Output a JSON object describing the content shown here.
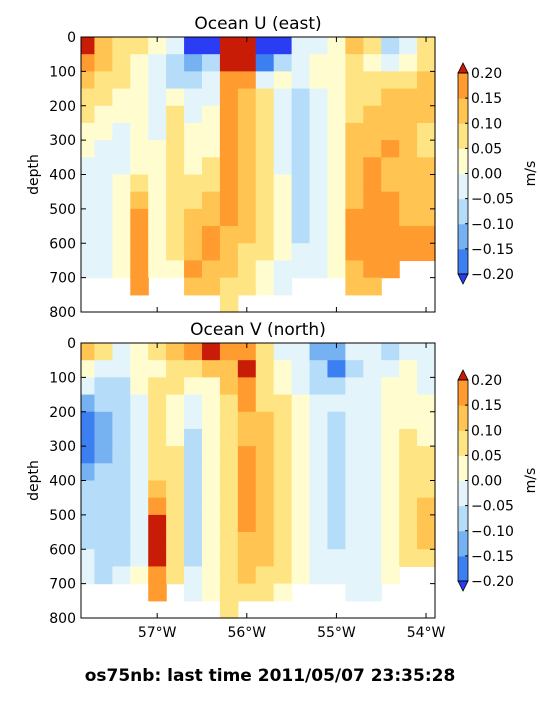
{
  "figure": {
    "suptitle": "os75nb: last time 2011/05/07 23:35:28"
  },
  "chart_data": [
    {
      "type": "heatmap",
      "title": "Ocean U (east)",
      "xlabel": "",
      "ylabel": "depth",
      "xlim": [
        -57.85,
        -53.9
      ],
      "ylim": [
        800,
        0
      ],
      "y_ticks": [
        0,
        100,
        200,
        300,
        400,
        500,
        600,
        700,
        800
      ],
      "x_ticks": [
        -57,
        -56,
        -55,
        -54
      ],
      "x_tick_labels": [],
      "colorbar": {
        "label": "m/s",
        "levels": [
          -0.2,
          -0.15,
          -0.1,
          -0.05,
          0,
          0.05,
          0.1,
          0.15,
          0.2
        ],
        "tick_labels": [
          "0.20",
          "0.15",
          "0.10",
          "0.05",
          "0.00",
          "−0.05",
          "−0.10",
          "−0.15",
          "−0.20"
        ]
      },
      "x": [
        -57.8,
        -57.6,
        -57.4,
        -57.2,
        -57.0,
        -56.8,
        -56.6,
        -56.4,
        -56.2,
        -56.0,
        -55.8,
        -55.6,
        -55.4,
        -55.2,
        -55.0,
        -54.8,
        -54.6,
        -54.4,
        -54.2,
        -54.0
      ],
      "y": [
        25,
        75,
        125,
        175,
        225,
        275,
        325,
        375,
        425,
        475,
        525,
        575,
        625,
        675,
        725,
        775
      ],
      "z": [
        [
          0.2,
          0.1,
          0.05,
          0.05,
          0.0,
          -0.05,
          -0.25,
          -0.25,
          0.2,
          0.25,
          -0.25,
          -0.25,
          -0.05,
          -0.05,
          0.0,
          0.1,
          0.05,
          -0.1,
          -0.05,
          0.05
        ],
        [
          0.15,
          0.1,
          0.05,
          0.0,
          -0.05,
          -0.1,
          -0.15,
          -0.1,
          0.2,
          0.2,
          -0.2,
          -0.1,
          -0.05,
          0.0,
          0.0,
          0.05,
          0.0,
          -0.05,
          0.0,
          0.05
        ],
        [
          0.1,
          0.05,
          0.05,
          0.0,
          -0.05,
          -0.1,
          -0.1,
          -0.05,
          0.15,
          0.15,
          -0.05,
          0.0,
          -0.05,
          0.0,
          0.0,
          0.05,
          0.05,
          0.05,
          0.05,
          0.1
        ],
        [
          0.05,
          0.05,
          0.0,
          0.0,
          -0.05,
          0.0,
          -0.05,
          -0.05,
          0.15,
          0.1,
          0.05,
          -0.05,
          -0.1,
          -0.05,
          0.0,
          0.05,
          0.05,
          0.1,
          0.1,
          0.1
        ],
        [
          0.05,
          0.0,
          0.0,
          0.0,
          -0.05,
          0.05,
          -0.05,
          0.0,
          0.15,
          0.1,
          0.05,
          -0.05,
          -0.1,
          -0.05,
          0.0,
          0.05,
          0.1,
          0.1,
          0.1,
          0.1
        ],
        [
          0.0,
          0.0,
          -0.05,
          0.0,
          -0.05,
          0.05,
          0.0,
          0.0,
          0.15,
          0.1,
          0.05,
          -0.05,
          -0.1,
          -0.05,
          0.0,
          0.1,
          0.1,
          0.1,
          0.1,
          0.05
        ],
        [
          0.0,
          -0.05,
          -0.05,
          0.0,
          0.0,
          0.05,
          0.0,
          0.0,
          0.15,
          0.1,
          0.05,
          -0.05,
          -0.1,
          -0.05,
          0.0,
          0.1,
          0.1,
          0.15,
          0.1,
          0.05
        ],
        [
          -0.05,
          -0.05,
          -0.05,
          0.0,
          0.0,
          0.05,
          0.0,
          0.05,
          0.15,
          0.1,
          0.05,
          -0.05,
          -0.1,
          -0.05,
          0.0,
          0.1,
          0.15,
          0.1,
          0.1,
          0.1
        ],
        [
          -0.05,
          -0.05,
          0.0,
          0.05,
          0.0,
          0.05,
          0.05,
          0.05,
          0.15,
          0.1,
          0.05,
          0.0,
          -0.1,
          -0.05,
          0.0,
          0.1,
          0.15,
          0.1,
          0.1,
          0.1
        ],
        [
          -0.05,
          -0.05,
          0.0,
          0.1,
          0.0,
          0.05,
          0.05,
          0.1,
          0.15,
          0.1,
          0.05,
          0.0,
          -0.1,
          -0.05,
          0.0,
          0.1,
          0.15,
          0.15,
          0.1,
          0.1
        ],
        [
          -0.05,
          -0.05,
          0.0,
          0.15,
          0.0,
          0.05,
          0.1,
          0.1,
          0.15,
          0.1,
          0.05,
          0.0,
          -0.1,
          -0.05,
          0.0,
          0.15,
          0.15,
          0.15,
          0.1,
          0.1
        ],
        [
          -0.05,
          -0.05,
          0.0,
          0.15,
          0.0,
          0.05,
          0.1,
          0.15,
          0.1,
          0.1,
          0.05,
          0.0,
          -0.1,
          -0.05,
          0.0,
          0.15,
          0.15,
          0.15,
          0.15,
          0.15
        ],
        [
          -0.05,
          -0.05,
          0.0,
          0.15,
          0.0,
          0.05,
          0.1,
          0.15,
          0.1,
          0.05,
          0.05,
          0.0,
          -0.05,
          -0.05,
          0.0,
          0.15,
          0.15,
          0.15,
          0.15,
          0.15
        ],
        [
          -0.05,
          -0.05,
          0.0,
          0.15,
          0.0,
          0.0,
          0.15,
          0.1,
          0.1,
          0.05,
          0.0,
          -0.05,
          -0.05,
          -0.05,
          0.0,
          0.1,
          0.15,
          0.15,
          null,
          null
        ],
        [
          null,
          null,
          null,
          0.15,
          null,
          null,
          0.1,
          0.1,
          0.05,
          0.05,
          0.0,
          -0.05,
          null,
          null,
          null,
          0.1,
          0.1,
          null,
          null,
          null
        ],
        [
          null,
          null,
          null,
          null,
          null,
          null,
          null,
          null,
          0.05,
          null,
          null,
          null,
          null,
          null,
          null,
          null,
          null,
          null,
          null,
          null
        ]
      ]
    },
    {
      "type": "heatmap",
      "title": "Ocean V (north)",
      "xlabel": "",
      "ylabel": "depth",
      "xlim": [
        -57.85,
        -53.9
      ],
      "ylim": [
        800,
        0
      ],
      "y_ticks": [
        0,
        100,
        200,
        300,
        400,
        500,
        600,
        700,
        800
      ],
      "x_ticks": [
        -57,
        -56,
        -55,
        -54
      ],
      "x_tick_labels": [
        "57°W",
        "56°W",
        "55°W",
        "54°W"
      ],
      "colorbar": {
        "label": "m/s",
        "levels": [
          -0.2,
          -0.15,
          -0.1,
          -0.05,
          0,
          0.05,
          0.1,
          0.15,
          0.2
        ],
        "tick_labels": [
          "0.20",
          "0.15",
          "0.10",
          "0.05",
          "0.00",
          "−0.05",
          "−0.10",
          "−0.15",
          "−0.20"
        ]
      },
      "x": [
        -57.8,
        -57.6,
        -57.4,
        -57.2,
        -57.0,
        -56.8,
        -56.6,
        -56.4,
        -56.2,
        -56.0,
        -55.8,
        -55.6,
        -55.4,
        -55.2,
        -55.0,
        -54.8,
        -54.6,
        -54.4,
        -54.2,
        -54.0
      ],
      "y": [
        25,
        75,
        125,
        175,
        225,
        275,
        325,
        375,
        425,
        475,
        525,
        575,
        625,
        675,
        725,
        775
      ],
      "z": [
        [
          0.1,
          0.05,
          -0.05,
          0.0,
          0.05,
          0.1,
          0.15,
          0.2,
          0.15,
          0.15,
          0.05,
          -0.05,
          -0.05,
          -0.15,
          -0.15,
          -0.05,
          -0.05,
          -0.1,
          -0.05,
          -0.05
        ],
        [
          0.0,
          -0.05,
          -0.05,
          0.0,
          0.0,
          0.05,
          0.05,
          0.1,
          0.1,
          0.2,
          0.05,
          0.0,
          -0.05,
          -0.1,
          -0.2,
          -0.1,
          -0.05,
          -0.05,
          0.0,
          -0.05
        ],
        [
          -0.05,
          -0.1,
          -0.1,
          0.0,
          0.05,
          0.05,
          0.0,
          0.0,
          0.1,
          0.15,
          0.05,
          0.0,
          -0.05,
          -0.1,
          -0.1,
          -0.05,
          -0.05,
          0.0,
          0.0,
          -0.05
        ],
        [
          -0.15,
          -0.1,
          -0.1,
          -0.05,
          0.05,
          0.0,
          -0.05,
          0.0,
          0.05,
          0.15,
          0.05,
          0.05,
          0.0,
          -0.05,
          -0.05,
          -0.05,
          -0.05,
          0.0,
          0.0,
          0.0
        ],
        [
          -0.2,
          -0.15,
          -0.1,
          -0.05,
          0.05,
          0.0,
          -0.05,
          0.0,
          0.05,
          0.1,
          0.1,
          0.05,
          0.0,
          -0.05,
          -0.1,
          -0.05,
          -0.05,
          0.0,
          0.0,
          0.0
        ],
        [
          -0.2,
          -0.15,
          -0.1,
          -0.05,
          0.05,
          0.0,
          -0.1,
          0.0,
          0.05,
          0.1,
          0.1,
          0.05,
          0.0,
          -0.05,
          -0.1,
          -0.05,
          -0.05,
          0.0,
          0.05,
          0.0
        ],
        [
          -0.2,
          -0.15,
          -0.1,
          -0.05,
          0.05,
          0.05,
          -0.1,
          0.0,
          0.05,
          0.15,
          0.1,
          0.05,
          0.0,
          -0.05,
          -0.1,
          -0.05,
          -0.05,
          0.0,
          0.05,
          0.05
        ],
        [
          -0.15,
          -0.1,
          -0.1,
          -0.05,
          0.05,
          0.05,
          -0.1,
          0.0,
          0.05,
          0.15,
          0.1,
          0.05,
          0.0,
          -0.05,
          -0.1,
          -0.05,
          -0.05,
          0.0,
          0.05,
          0.05
        ],
        [
          -0.1,
          -0.1,
          -0.1,
          -0.05,
          0.1,
          0.05,
          -0.1,
          0.0,
          0.05,
          0.15,
          0.1,
          0.05,
          0.0,
          -0.05,
          -0.1,
          -0.05,
          -0.05,
          0.0,
          0.05,
          0.05
        ],
        [
          -0.1,
          -0.1,
          -0.1,
          -0.05,
          0.15,
          0.05,
          -0.1,
          0.0,
          0.05,
          0.15,
          0.1,
          0.05,
          0.0,
          -0.05,
          -0.1,
          -0.05,
          -0.05,
          0.0,
          0.05,
          0.1
        ],
        [
          -0.1,
          -0.1,
          -0.1,
          -0.05,
          0.2,
          0.05,
          -0.1,
          0.0,
          0.05,
          0.15,
          0.1,
          0.05,
          0.0,
          -0.05,
          -0.1,
          -0.05,
          -0.05,
          0.0,
          0.05,
          0.1
        ],
        [
          -0.1,
          -0.1,
          -0.1,
          -0.05,
          0.2,
          0.05,
          -0.1,
          0.0,
          0.05,
          0.1,
          0.1,
          0.05,
          0.0,
          -0.05,
          -0.1,
          -0.05,
          -0.05,
          0.0,
          0.05,
          0.1
        ],
        [
          -0.05,
          -0.1,
          -0.1,
          -0.05,
          0.2,
          0.05,
          -0.1,
          0.0,
          0.05,
          0.1,
          0.1,
          0.05,
          0.0,
          -0.05,
          -0.05,
          -0.05,
          -0.05,
          0.0,
          0.05,
          0.05
        ],
        [
          -0.05,
          -0.1,
          -0.05,
          0.0,
          0.15,
          0.05,
          -0.05,
          0.0,
          0.05,
          0.1,
          0.05,
          0.05,
          0.0,
          -0.05,
          -0.05,
          -0.05,
          -0.05,
          0.0,
          null,
          null
        ],
        [
          null,
          null,
          null,
          null,
          0.15,
          null,
          -0.05,
          0.0,
          0.05,
          0.05,
          0.05,
          0.0,
          null,
          null,
          null,
          -0.05,
          -0.05,
          null,
          null,
          null
        ],
        [
          null,
          null,
          null,
          null,
          null,
          null,
          null,
          null,
          0.05,
          null,
          null,
          null,
          null,
          null,
          null,
          null,
          null,
          null,
          null,
          null
        ]
      ]
    }
  ]
}
